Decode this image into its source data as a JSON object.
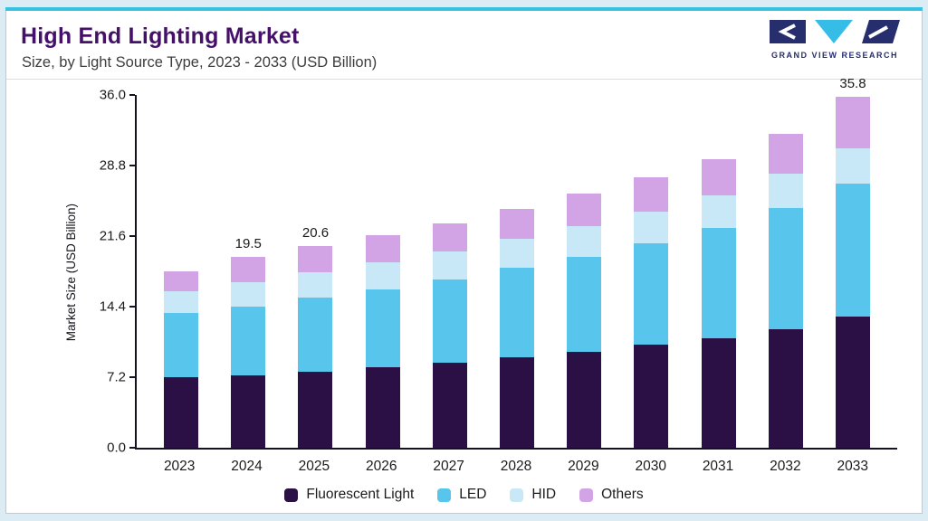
{
  "header": {
    "title": "High End Lighting Market",
    "subtitle": "Size, by Light Source Type, 2023 - 2033 (USD Billion)",
    "logo_text": "GRAND VIEW RESEARCH"
  },
  "colors": {
    "accent_line": "#38c2e2",
    "frame_background": "#dcecf5",
    "title_purple": "#451069",
    "logo_navy": "#262e6d",
    "logo_cyan": "#35bde8",
    "fluorescent": "#2a1045",
    "led": "#58c5ed",
    "hid": "#c8e8f8",
    "others": "#d2a4e6"
  },
  "chart_data": {
    "type": "bar",
    "stacked": true,
    "title": "High End Lighting Market Size, by Light Source Type, 2023 - 2033 (USD Billion)",
    "xlabel": "",
    "ylabel": "Market Size (USD Billion)",
    "ylim": [
      0,
      36.0
    ],
    "yticks": [
      "0.0",
      "7.2",
      "14.4",
      "21.6",
      "28.8",
      "36.0"
    ],
    "grid": false,
    "legend_position": "bottom",
    "categories": [
      "2023",
      "2024",
      "2025",
      "2026",
      "2027",
      "2028",
      "2029",
      "2030",
      "2031",
      "2032",
      "2033"
    ],
    "series": [
      {
        "name": "Fluorescent Light",
        "color": "#2a1045",
        "values": [
          7.2,
          7.4,
          7.8,
          8.2,
          8.7,
          9.2,
          9.8,
          10.5,
          11.2,
          12.1,
          13.4
        ]
      },
      {
        "name": "LED",
        "color": "#58c5ed",
        "values": [
          6.6,
          7.0,
          7.5,
          8.0,
          8.5,
          9.2,
          9.7,
          10.4,
          11.2,
          12.4,
          13.6
        ]
      },
      {
        "name": "HID",
        "color": "#c8e8f8",
        "values": [
          2.2,
          2.5,
          2.6,
          2.7,
          2.8,
          2.9,
          3.1,
          3.2,
          3.4,
          3.5,
          3.6
        ]
      },
      {
        "name": "Others",
        "color": "#d2a4e6",
        "values": [
          2.0,
          2.6,
          2.7,
          2.8,
          2.9,
          3.1,
          3.3,
          3.5,
          3.7,
          4.0,
          5.2
        ]
      }
    ],
    "totals_labels": {
      "2024": "19.5",
      "2025": "20.6",
      "2033": "35.8"
    }
  }
}
